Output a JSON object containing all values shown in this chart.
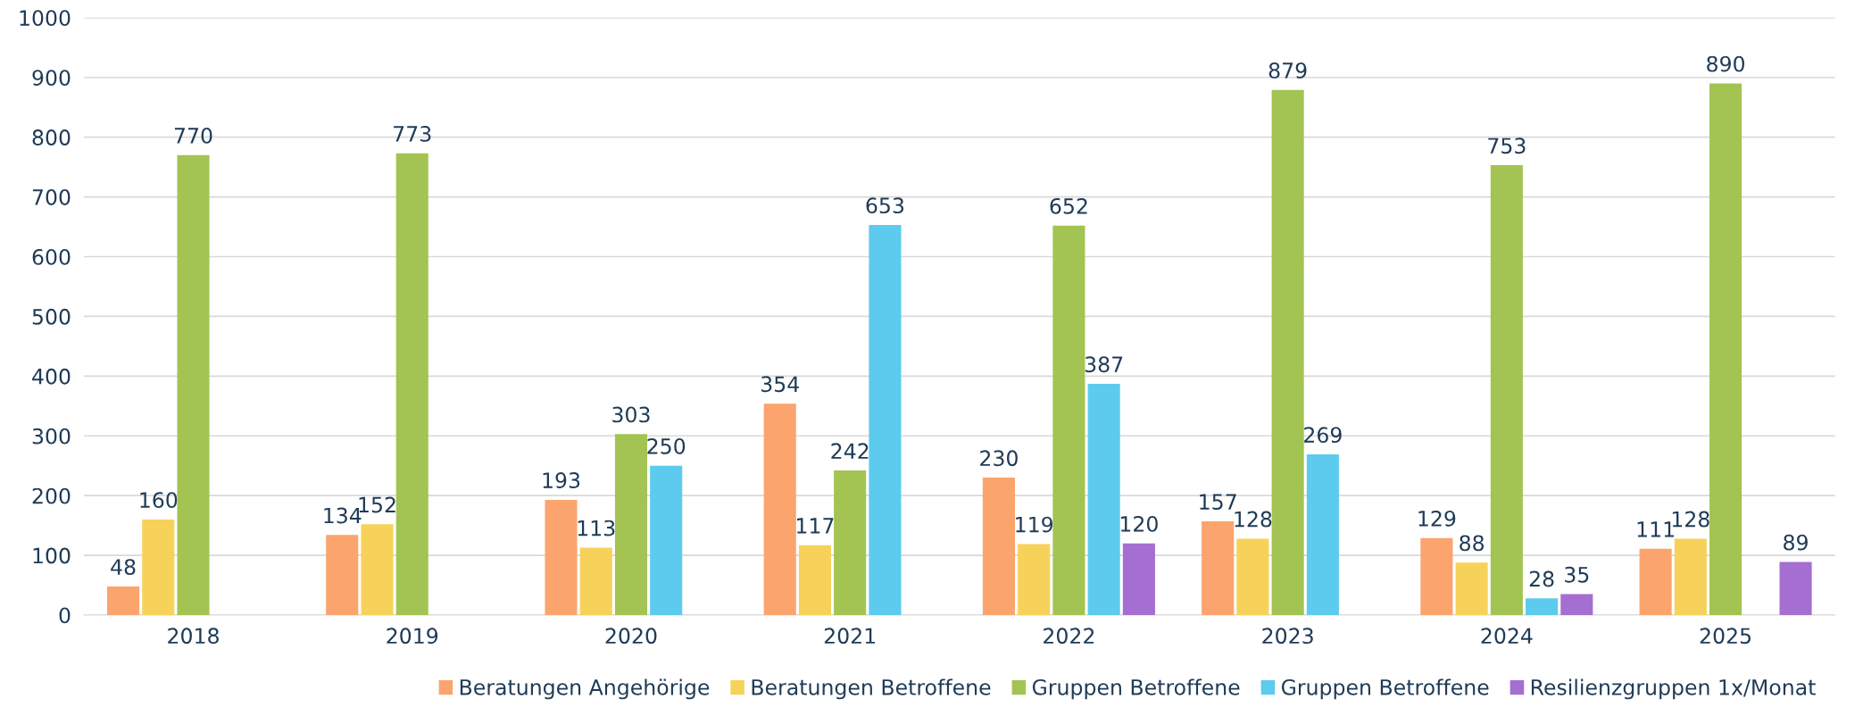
{
  "chart_data": {
    "type": "bar",
    "categories": [
      "2018",
      "2019",
      "2020",
      "2021",
      "2022",
      "2023",
      "2024",
      "2025"
    ],
    "series": [
      {
        "name": "Beratungen Angehörige",
        "color": "#fba46e",
        "values": [
          48,
          134,
          193,
          354,
          230,
          157,
          129,
          111
        ]
      },
      {
        "name": "Beratungen Betroffene",
        "color": "#f7d25a",
        "values": [
          160,
          152,
          113,
          117,
          119,
          128,
          88,
          128
        ]
      },
      {
        "name": "Gruppen Betroffene",
        "color": "#a3c452",
        "values": [
          770,
          773,
          303,
          242,
          652,
          879,
          753,
          890
        ]
      },
      {
        "name": "Gruppen Betroffene",
        "color": "#5ccbee",
        "values": [
          null,
          null,
          250,
          653,
          387,
          269,
          28,
          null
        ]
      },
      {
        "name": "Resilienzgruppen 1x/Monat",
        "color": "#a46fd0",
        "values": [
          null,
          null,
          null,
          null,
          120,
          null,
          35,
          89
        ]
      }
    ],
    "ylim": [
      0,
      1000
    ],
    "yticks": [
      0,
      100,
      200,
      300,
      400,
      500,
      600,
      700,
      800,
      900,
      1000
    ],
    "grid": "y",
    "legend": "bottom",
    "data_labels": true
  }
}
